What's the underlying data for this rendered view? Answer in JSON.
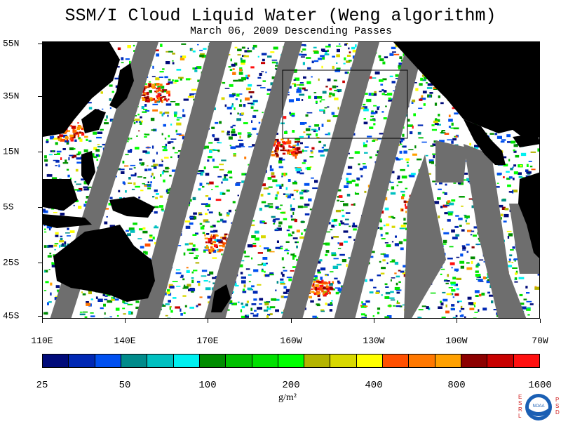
{
  "title": "SSM/I Cloud Liquid Water (Weng algorithm)",
  "subtitle": "March 06, 2009  Descending Passes",
  "lat_labels": [
    "55N",
    "35N",
    "15N",
    "5S",
    "25S",
    "45S"
  ],
  "lon_labels": [
    "110E",
    "140E",
    "170E",
    "160W",
    "130W",
    "100W",
    "70W"
  ],
  "colorbar": {
    "colors": [
      "#000b7a",
      "#0028b4",
      "#0050f0",
      "#008b8b",
      "#00c0c0",
      "#00f0f0",
      "#008c00",
      "#00c000",
      "#00e000",
      "#00ff00",
      "#b4b400",
      "#d8d800",
      "#ffff00",
      "#ff5000",
      "#ff7800",
      "#ffa000",
      "#8c0000",
      "#c80000",
      "#ff1010"
    ],
    "labels": [
      "25",
      "50",
      "100",
      "200",
      "400",
      "800",
      "1600"
    ],
    "units": "g/m²"
  },
  "map": {
    "region": "Pacific Ocean",
    "land_color": "#000000",
    "no_data_color": "#6e6e6e",
    "ocean_color": "#ffffff"
  },
  "logo": {
    "left_letters": "ESRL",
    "right_letters": "PSD",
    "center_text": "NOAA"
  }
}
